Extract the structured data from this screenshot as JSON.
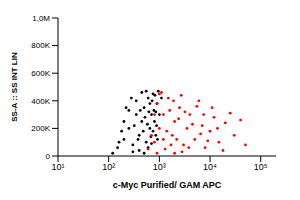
{
  "chart_data": {
    "type": "scatter",
    "x_label": "c-Myc Purified/ GAM APC",
    "y_label": "SS-A :: SS INT LIN",
    "log": "x",
    "grid": false,
    "xlim": [
      10,
      200000
    ],
    "xticks": [
      {
        "value": 10,
        "label": "10¹"
      },
      {
        "value": 100,
        "label": "10²"
      },
      {
        "value": 1000,
        "label": "10³"
      },
      {
        "value": 10000,
        "label": "10⁴"
      },
      {
        "value": 100000,
        "label": "10⁵"
      }
    ],
    "ylim": [
      0,
      1000000
    ],
    "yticks": [
      0,
      {
        "value": 200000,
        "label": "200K"
      },
      {
        "value": 400000,
        "label": "400K"
      },
      {
        "value": 600000,
        "label": "600K"
      },
      {
        "value": 800000,
        "label": "800K"
      },
      {
        "value": 1000000,
        "label": "1,0M"
      }
    ],
    "series": [
      {
        "color": "#000000",
        "x": [
          150,
          200,
          250,
          300,
          350,
          400,
          450,
          500,
          550,
          600,
          650,
          700,
          750,
          800,
          850,
          900,
          300,
          400,
          500,
          600,
          700,
          200,
          250,
          350,
          450,
          550,
          650,
          750,
          850,
          950,
          120,
          180,
          220,
          280,
          320,
          380,
          420,
          480,
          520,
          580,
          620,
          680,
          720,
          780,
          820,
          880,
          920,
          1000,
          1100,
          160
        ],
        "values": [
          60000,
          120000,
          200000,
          80000,
          300000,
          150000,
          250000,
          350000,
          100000,
          420000,
          200000,
          300000,
          450000,
          250000,
          150000,
          380000,
          30000,
          40000,
          20000,
          60000,
          90000,
          250000,
          330000,
          400000,
          460000,
          470000,
          380000,
          180000,
          320000,
          470000,
          20000,
          180000,
          350000,
          420000,
          220000,
          120000,
          330000,
          180000,
          280000,
          230000,
          320000,
          140000,
          400000,
          330000,
          440000,
          220000,
          120000,
          300000,
          420000,
          100000
        ]
      },
      {
        "color": "#ff0000",
        "x": [
          600,
          800,
          1000,
          1200,
          1500,
          1800,
          2000,
          2500,
          3000,
          3500,
          4000,
          5000,
          6000,
          7000,
          8000,
          10000,
          12000,
          15000,
          20000,
          30000,
          50000,
          900,
          1100,
          1300,
          1400,
          1600,
          1700,
          1900,
          2200,
          2400,
          2700,
          2800,
          3200,
          3800,
          4500,
          5500,
          6500,
          7500,
          9000,
          11000,
          14000,
          18000,
          25000,
          40000,
          900,
          1000,
          2000,
          700,
          800,
          1200
        ],
        "values": [
          50000,
          100000,
          200000,
          300000,
          420000,
          150000,
          250000,
          350000,
          80000,
          200000,
          300000,
          120000,
          400000,
          220000,
          60000,
          180000,
          280000,
          100000,
          240000,
          150000,
          80000,
          380000,
          460000,
          50000,
          180000,
          330000,
          80000,
          400000,
          120000,
          270000,
          440000,
          30000,
          320000,
          60000,
          230000,
          360000,
          160000,
          300000,
          110000,
          350000,
          200000,
          40000,
          310000,
          260000,
          20000,
          450000,
          20000,
          150000,
          300000,
          120000
        ]
      }
    ]
  }
}
